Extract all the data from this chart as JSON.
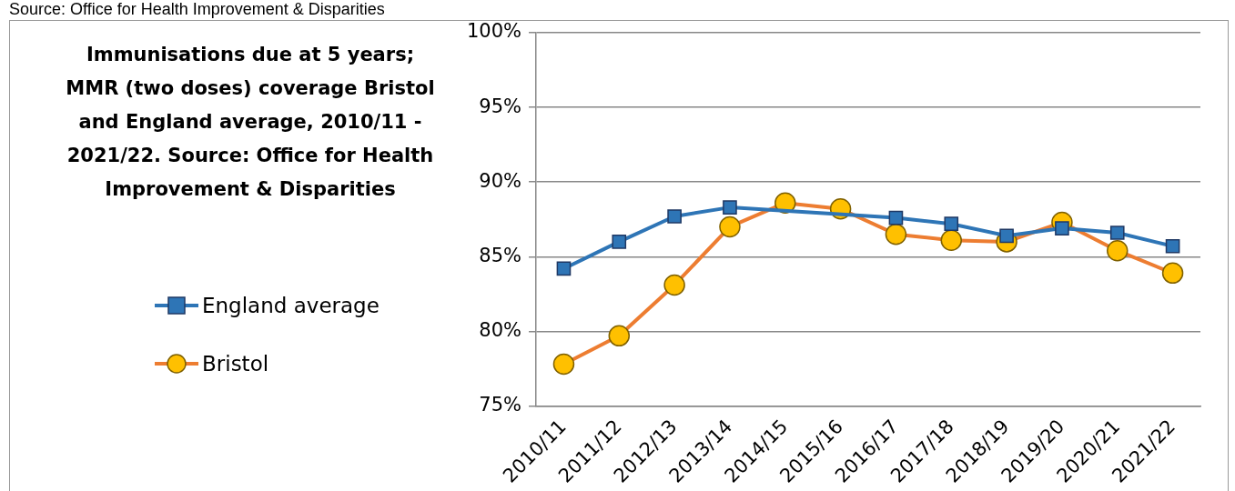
{
  "chart_data": {
    "type": "line",
    "title": "Immunisations due at 5 years; MMR (two doses) coverage Bristol and England average, 2010/11  - 2021/22. Source: Office for Health Improvement & Disparities",
    "annotations": [
      "Source: Office for Health Improvement & Disparities"
    ],
    "categories": [
      "2010/11",
      "2011/12",
      "2012/13",
      "2013/14",
      "2014/15",
      "2015/16",
      "2016/17",
      "2017/18",
      "2018/19",
      "2019/20",
      "2020/21",
      "2021/22"
    ],
    "series": [
      {
        "name": "England average",
        "color": "#2e75b6",
        "marker": "square",
        "values": [
          84.2,
          86.0,
          87.7,
          88.3,
          null,
          null,
          87.6,
          87.2,
          86.4,
          86.9,
          86.6,
          85.7
        ]
      },
      {
        "name": "Bristol",
        "color": "#ed7d31",
        "marker": "circle",
        "values": [
          77.8,
          79.7,
          83.1,
          87.0,
          88.6,
          88.2,
          86.5,
          86.1,
          86.0,
          87.3,
          85.4,
          83.9
        ]
      }
    ],
    "ylim": [
      75,
      100
    ],
    "yticks": [
      {
        "value": 75,
        "label": "75%"
      },
      {
        "value": 80,
        "label": "80%"
      },
      {
        "value": 85,
        "label": "85%"
      },
      {
        "value": 90,
        "label": "90%"
      },
      {
        "value": 95,
        "label": "95%"
      },
      {
        "value": 100,
        "label": "100%"
      }
    ],
    "grid": "y",
    "legend": "left",
    "line_style": "solid"
  }
}
